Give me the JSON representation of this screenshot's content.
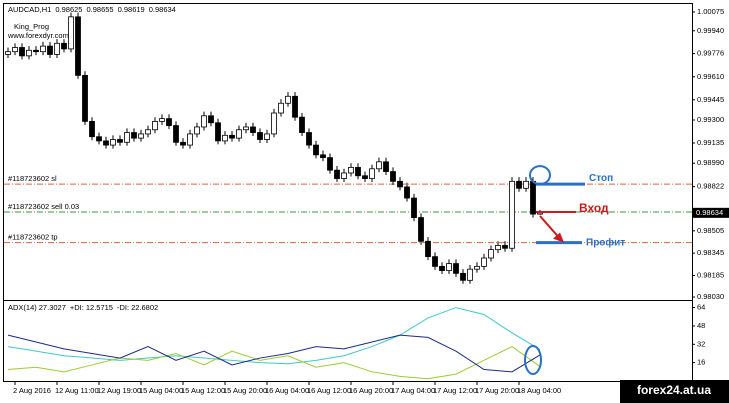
{
  "header": {
    "symbol": "AUDCAD,H1",
    "author": "King_Prog",
    "site": "www.forexdyr.com"
  },
  "watermark": "forex24.at.ua",
  "chart_data": [
    {
      "type": "candlestick",
      "categories": [
        null,
        "2 Aug 2016",
        null,
        null,
        null,
        null,
        null,
        "12 Aug 11:00",
        null,
        null,
        null,
        null,
        null,
        "12 Aug 19:00",
        null,
        null,
        null,
        null,
        null,
        "15 Aug 04:00",
        null,
        null,
        null,
        null,
        null,
        "15 Aug 12:00",
        null,
        null,
        null,
        null,
        null,
        "15 Aug 20:00",
        null,
        null,
        null,
        null,
        null,
        "16 Aug 04:00",
        null,
        null,
        null,
        null,
        null,
        "16 Aug 12:00",
        null,
        null,
        null,
        null,
        null,
        "16 Aug 20:00",
        null,
        null,
        null,
        null,
        null,
        "17 Aug 04:00",
        null,
        null,
        null,
        null,
        null,
        "17 Aug 12:00",
        null,
        null,
        null,
        null,
        null,
        "17 Aug 20:00",
        null,
        null,
        null,
        null,
        null,
        "18 Aug 04:00",
        null,
        null,
        null
      ],
      "open": [
        0.9977,
        0.9979,
        0.9982,
        0.9976,
        0.998,
        0.9979,
        0.9983,
        0.9977,
        0.9985,
        0.9981,
        1.0004,
        0.9962,
        0.9929,
        0.9918,
        0.9915,
        0.9912,
        0.9916,
        0.9914,
        0.9921,
        0.9917,
        0.992,
        0.9923,
        0.9929,
        0.9931,
        0.9926,
        0.9914,
        0.9912,
        0.992,
        0.9925,
        0.9933,
        0.9928,
        0.9915,
        0.9919,
        0.9917,
        0.9923,
        0.9925,
        0.9921,
        0.9916,
        0.992,
        0.9935,
        0.9942,
        0.9947,
        0.9932,
        0.9921,
        0.9912,
        0.9905,
        0.9903,
        0.9894,
        0.9888,
        0.9892,
        0.9896,
        0.989,
        0.9888,
        0.9895,
        0.99,
        0.9893,
        0.9886,
        0.9882,
        0.9874,
        0.986,
        0.9843,
        0.9832,
        0.9825,
        0.9822,
        0.9827,
        0.982,
        0.9815,
        0.9823,
        0.9825,
        0.9831,
        0.9837,
        0.984,
        0.9838,
        0.9886,
        0.9881,
        0.9886,
        0.98625
      ],
      "high": [
        0.9982,
        0.9985,
        0.9985,
        0.9983,
        0.9983,
        0.9986,
        0.9986,
        0.9988,
        0.9988,
        1.0007,
        1.0007,
        0.9965,
        0.9932,
        0.9921,
        0.9918,
        0.9919,
        0.9919,
        0.9924,
        0.9924,
        0.9923,
        0.9926,
        0.9932,
        0.9934,
        0.9934,
        0.9929,
        0.9917,
        0.9923,
        0.9928,
        0.9936,
        0.9936,
        0.9931,
        0.9922,
        0.9922,
        0.9926,
        0.9928,
        0.9928,
        0.9924,
        0.9923,
        0.9938,
        0.9945,
        0.995,
        0.995,
        0.9935,
        0.9924,
        0.9915,
        0.9908,
        0.9906,
        0.9897,
        0.9895,
        0.9899,
        0.9899,
        0.9893,
        0.9898,
        0.9903,
        0.9903,
        0.9896,
        0.9889,
        0.9885,
        0.9877,
        0.9863,
        0.9846,
        0.9835,
        0.9828,
        0.983,
        0.983,
        0.9823,
        0.9826,
        0.9828,
        0.9834,
        0.984,
        0.9843,
        0.9843,
        0.9889,
        0.9889,
        0.9889,
        0.9889,
        0.98655
      ],
      "low": [
        0.99745,
        0.99765,
        0.99735,
        0.99735,
        0.99765,
        0.99765,
        0.99745,
        0.99745,
        0.99785,
        0.99785,
        0.99595,
        0.99265,
        0.99155,
        0.99125,
        0.99095,
        0.99095,
        0.99115,
        0.99115,
        0.99145,
        0.99145,
        0.99175,
        0.99205,
        0.99265,
        0.99235,
        0.99115,
        0.99095,
        0.99095,
        0.99175,
        0.99225,
        0.99255,
        0.99125,
        0.99125,
        0.99145,
        0.99145,
        0.99205,
        0.99185,
        0.99135,
        0.99135,
        0.99175,
        0.99325,
        0.99395,
        0.99295,
        0.99185,
        0.99095,
        0.99025,
        0.99005,
        0.98915,
        0.98855,
        0.98855,
        0.98895,
        0.98875,
        0.98855,
        0.98855,
        0.98925,
        0.98905,
        0.98835,
        0.98795,
        0.98715,
        0.98575,
        0.98405,
        0.98295,
        0.98225,
        0.98195,
        0.98195,
        0.98175,
        0.98125,
        0.98125,
        0.98205,
        0.98225,
        0.98285,
        0.98345,
        0.98355,
        0.98355,
        0.98785,
        0.98785,
        0.986,
        0.98619
      ],
      "close": [
        0.9979,
        0.9982,
        0.9976,
        0.998,
        0.9979,
        0.9983,
        0.9977,
        0.9985,
        0.9981,
        1.0004,
        0.9962,
        0.9929,
        0.9918,
        0.9915,
        0.9912,
        0.9916,
        0.9914,
        0.9921,
        0.9917,
        0.992,
        0.9923,
        0.9929,
        0.9931,
        0.9926,
        0.9914,
        0.9912,
        0.992,
        0.9925,
        0.9933,
        0.9928,
        0.9915,
        0.9919,
        0.9917,
        0.9923,
        0.9925,
        0.9921,
        0.9916,
        0.992,
        0.9935,
        0.9942,
        0.9947,
        0.9932,
        0.9921,
        0.9912,
        0.9905,
        0.9903,
        0.9894,
        0.9888,
        0.9892,
        0.9896,
        0.989,
        0.9888,
        0.9895,
        0.99,
        0.9893,
        0.9886,
        0.9882,
        0.9874,
        0.986,
        0.9843,
        0.9832,
        0.9825,
        0.9822,
        0.9827,
        0.982,
        0.9815,
        0.9823,
        0.9825,
        0.9831,
        0.9837,
        0.984,
        0.9838,
        0.9886,
        0.9881,
        0.9886,
        0.98625,
        0.98634
      ],
      "ylim": [
        0.98016,
        1.00132
      ],
      "yticks": [
        1.00075,
        {
          "value": 0.9994,
          "label": "0.99940"
        },
        0.99776,
        {
          "value": 0.9961,
          "label": "0.99610"
        },
        0.99445,
        {
          "value": 0.993,
          "label": "0.99300"
        },
        0.99135,
        {
          "value": 0.9899,
          "label": "0.98990"
        },
        0.98822,
        0.98505,
        0.98345,
        0.98185,
        {
          "value": 0.9803,
          "label": "0.98030"
        }
      ],
      "orders": [
        {
          "label": "#118723602 sl",
          "price": 0.9884,
          "color": "#e0603a"
        },
        {
          "label": "#118723602 sell 0.03",
          "price": 0.9864,
          "color": "#3a9a3a"
        },
        {
          "label": "#118723602 tp",
          "price": 0.9842,
          "color": "#e0603a"
        }
      ],
      "annotations": {
        "stop": "Стоп",
        "entry": "Вход",
        "profit": "Профит"
      }
    },
    {
      "type": "line",
      "ylim": [
        0,
        68
      ],
      "yticks": [
        64,
        48,
        32,
        16
      ],
      "series": [
        {
          "name": "ADX(14)",
          "color": "#40c8c8",
          "values": [
            30,
            26,
            22,
            20,
            18,
            20,
            22,
            20,
            18,
            16,
            15,
            18,
            22,
            30,
            40,
            55,
            64,
            58,
            42,
            27.3027
          ]
        },
        {
          "name": "+DI:",
          "color": "#9acd32",
          "values": [
            10,
            12,
            8,
            14,
            20,
            18,
            24,
            14,
            26,
            18,
            22,
            12,
            16,
            8,
            4,
            2,
            6,
            18,
            30,
            12.5715
          ]
        },
        {
          "name": "-DI:",
          "color": "#1c2a8a",
          "values": [
            40,
            34,
            28,
            24,
            20,
            30,
            18,
            26,
            14,
            20,
            24,
            30,
            28,
            34,
            40,
            38,
            26,
            10,
            8,
            22.6802
          ]
        }
      ]
    }
  ]
}
